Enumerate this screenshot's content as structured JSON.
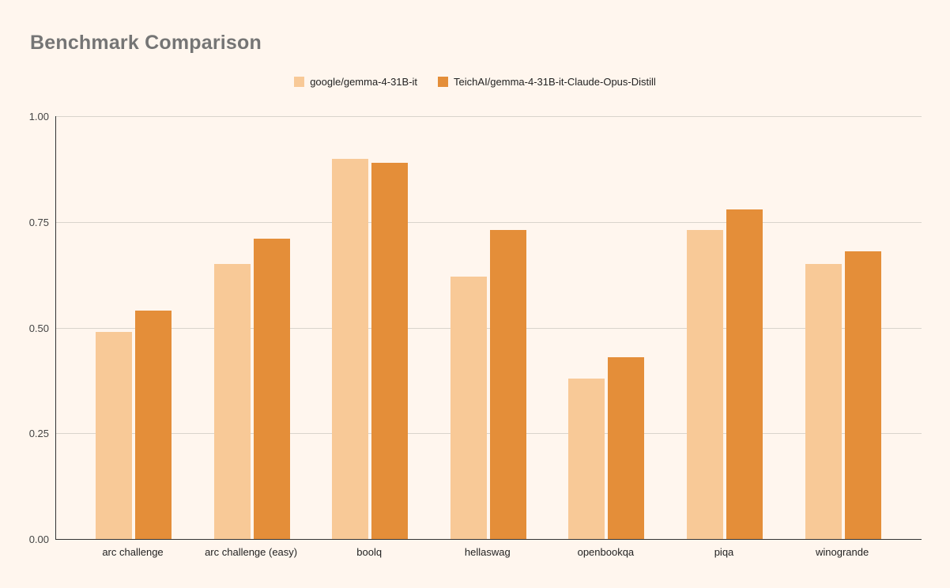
{
  "page": {
    "background": "#fff6ee"
  },
  "chart_data": {
    "type": "bar",
    "title": "Benchmark Comparison",
    "title_color": "#757575",
    "categories": [
      "arc challenge",
      "arc challenge (easy)",
      "boolq",
      "hellaswag",
      "openbookqa",
      "piqa",
      "winogrande"
    ],
    "series": [
      {
        "name": "google/gemma-4-31B-it",
        "color": "#f8c997",
        "values": [
          0.49,
          0.65,
          0.9,
          0.62,
          0.38,
          0.73,
          0.65
        ]
      },
      {
        "name": "TeichAI/gemma-4-31B-it-Claude-Opus-Distill",
        "color": "#e48e39",
        "values": [
          0.54,
          0.71,
          0.89,
          0.73,
          0.43,
          0.78,
          0.68
        ]
      }
    ],
    "xlabel": "",
    "ylabel": "",
    "ylim": [
      0,
      1
    ],
    "yticks": [
      "0.00",
      "0.25",
      "0.50",
      "0.75",
      "1.00"
    ],
    "grid": true,
    "legend_position": "top",
    "gridline_color": "#d9d4cc",
    "axis_color": "#333333"
  }
}
